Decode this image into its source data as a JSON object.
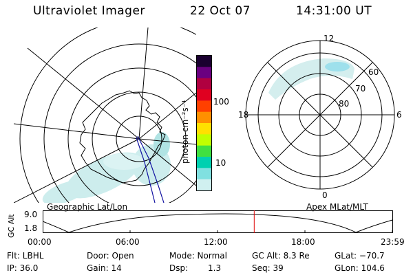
{
  "header": {
    "title": "Ultraviolet Imager",
    "date": "22 Oct 07",
    "time": "14:31:00 UT"
  },
  "left_panel": {
    "caption": "Geographic Lat/Lon"
  },
  "right_panel": {
    "caption": "Apex MLat/MLT",
    "mlt_labels": [
      "12",
      "18",
      "6",
      "0"
    ],
    "lat_labels": [
      "60",
      "70",
      "80"
    ]
  },
  "colorbar": {
    "unit_label": "photon cm⁻²s⁻¹",
    "ticks": [
      "100",
      "10"
    ],
    "scale": "log",
    "colors": [
      "#1a0030",
      "#6a0080",
      "#b00040",
      "#e00020",
      "#ff4000",
      "#ff9000",
      "#ffe000",
      "#c0ff00",
      "#40e040",
      "#00d0b0",
      "#80e0e0",
      "#d0f0f0"
    ]
  },
  "orbit_plot": {
    "ylabel": "GC Alt",
    "yticks": [
      "9.0",
      "1.8"
    ],
    "xticks": [
      "00:00",
      "06:00",
      "12:00",
      "18:00",
      "23:59"
    ],
    "current_time_hours": 14.52,
    "marker_color": "#dd0000"
  },
  "info": {
    "filter": "Flt: LBHL",
    "ip": "IP: 36.0",
    "door": "Door: Open",
    "gain": "Gain: 14",
    "mode": "Mode: Normal",
    "dsp_label": "Dsp:",
    "dsp_value": "1.3",
    "gc_alt": "GC Alt: 8.3 Re",
    "seq": "Seq: 39",
    "glat": "GLat: −70.7",
    "glon": "GLon: 104.6"
  }
}
